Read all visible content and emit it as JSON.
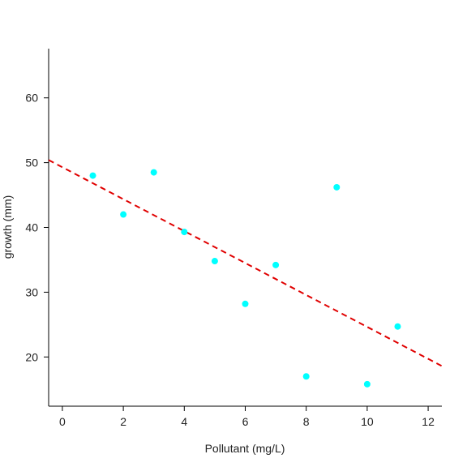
{
  "chart_data": {
    "type": "scatter",
    "title": "",
    "xlabel": "Pollutant (mg/L)",
    "ylabel": "growth (mm)",
    "xlim": [
      -0.45,
      12.45
    ],
    "ylim": [
      12.4,
      67.6
    ],
    "xticks": [
      0,
      2,
      4,
      6,
      8,
      10,
      12
    ],
    "yticks": [
      20,
      30,
      40,
      50,
      60
    ],
    "grid": false,
    "points": {
      "x": [
        1,
        2,
        3,
        4,
        5,
        6,
        7,
        8,
        9,
        10,
        11
      ],
      "y": [
        48.0,
        42.0,
        48.5,
        39.3,
        34.8,
        28.2,
        34.2,
        17.0,
        46.2,
        15.8,
        24.7
      ]
    },
    "fit_line": {
      "style": "dashed",
      "x": [
        -0.45,
        12.45
      ],
      "y": [
        50.4,
        18.6
      ]
    },
    "colors": {
      "points": "#00FFFF",
      "fit_line": "#E00000",
      "axis": "#000000"
    }
  }
}
